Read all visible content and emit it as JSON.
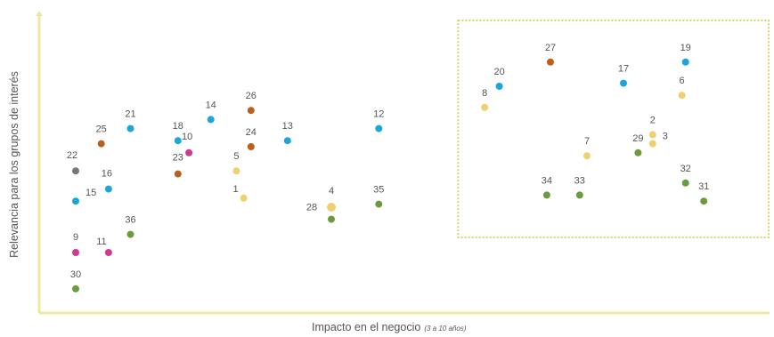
{
  "colors": {
    "axis": "#efe6a0",
    "box_border": "#d6d46a",
    "blue": "#1aa6d8",
    "orange": "#b8611d",
    "green": "#6b9a3f",
    "yellow": "#f0cf6e",
    "pink": "#d33a8f",
    "gray": "#777777",
    "text": "#555555"
  },
  "chart_data": {
    "type": "scatter",
    "xlabel": "Impacto en el negocio",
    "xlabel_note": "(3 a 10 años)",
    "ylabel": "Relevancia para los grupos de interés",
    "x_ticks": "none",
    "y_ticks": "none",
    "grid": false,
    "legend": "none",
    "xlim": [
      0,
      100
    ],
    "ylim": [
      0,
      100
    ],
    "highlight_region": {
      "x": [
        57,
        100
      ],
      "y": [
        25,
        100
      ],
      "style": "dotted"
    },
    "points": [
      {
        "label": "1",
        "x": 28.0,
        "y": 38.0,
        "color": "yellow"
      },
      {
        "label": "2",
        "x": 84.0,
        "y": 59.0,
        "color": "yellow"
      },
      {
        "label": "3",
        "x": 84.0,
        "y": 56.0,
        "color": "yellow"
      },
      {
        "label": "4",
        "x": 40.0,
        "y": 35.0,
        "color": "yellow"
      },
      {
        "label": "5",
        "x": 27.0,
        "y": 47.0,
        "color": "yellow"
      },
      {
        "label": "6",
        "x": 88.0,
        "y": 72.0,
        "color": "yellow"
      },
      {
        "label": "7",
        "x": 75.0,
        "y": 52.0,
        "color": "yellow"
      },
      {
        "label": "8",
        "x": 61.0,
        "y": 68.0,
        "color": "yellow"
      },
      {
        "label": "9",
        "x": 5.0,
        "y": 20.0,
        "color": "pink"
      },
      {
        "label": "10",
        "x": 20.5,
        "y": 53.0,
        "color": "pink"
      },
      {
        "label": "11",
        "x": 9.5,
        "y": 20.0,
        "color": "pink"
      },
      {
        "label": "12",
        "x": 46.5,
        "y": 61.0,
        "color": "blue"
      },
      {
        "label": "13",
        "x": 34.0,
        "y": 57.0,
        "color": "blue"
      },
      {
        "label": "14",
        "x": 23.5,
        "y": 64.0,
        "color": "blue"
      },
      {
        "label": "15",
        "x": 5.0,
        "y": 37.0,
        "color": "blue"
      },
      {
        "label": "16",
        "x": 9.5,
        "y": 41.0,
        "color": "blue"
      },
      {
        "label": "17",
        "x": 80.0,
        "y": 76.0,
        "color": "blue"
      },
      {
        "label": "18",
        "x": 19.0,
        "y": 57.0,
        "color": "blue"
      },
      {
        "label": "19",
        "x": 88.5,
        "y": 83.0,
        "color": "blue"
      },
      {
        "label": "20",
        "x": 63.0,
        "y": 75.0,
        "color": "blue"
      },
      {
        "label": "21",
        "x": 12.5,
        "y": 61.0,
        "color": "blue"
      },
      {
        "label": "22",
        "x": 5.0,
        "y": 47.0,
        "color": "gray"
      },
      {
        "label": "23",
        "x": 19.0,
        "y": 46.0,
        "color": "orange"
      },
      {
        "label": "24",
        "x": 29.0,
        "y": 55.0,
        "color": "orange"
      },
      {
        "label": "25",
        "x": 8.5,
        "y": 56.0,
        "color": "orange"
      },
      {
        "label": "26",
        "x": 29.0,
        "y": 67.0,
        "color": "orange"
      },
      {
        "label": "27",
        "x": 70.0,
        "y": 83.0,
        "color": "orange"
      },
      {
        "label": "28",
        "x": 40.0,
        "y": 31.0,
        "color": "green"
      },
      {
        "label": "29",
        "x": 82.0,
        "y": 53.0,
        "color": "green"
      },
      {
        "label": "30",
        "x": 5.0,
        "y": 8.0,
        "color": "green"
      },
      {
        "label": "31",
        "x": 91.0,
        "y": 37.0,
        "color": "green"
      },
      {
        "label": "32",
        "x": 88.5,
        "y": 43.0,
        "color": "green"
      },
      {
        "label": "33",
        "x": 74.0,
        "y": 39.0,
        "color": "green"
      },
      {
        "label": "34",
        "x": 69.5,
        "y": 39.0,
        "color": "green"
      },
      {
        "label": "35",
        "x": 46.5,
        "y": 36.0,
        "color": "green"
      },
      {
        "label": "36",
        "x": 12.5,
        "y": 26.0,
        "color": "green"
      }
    ]
  }
}
